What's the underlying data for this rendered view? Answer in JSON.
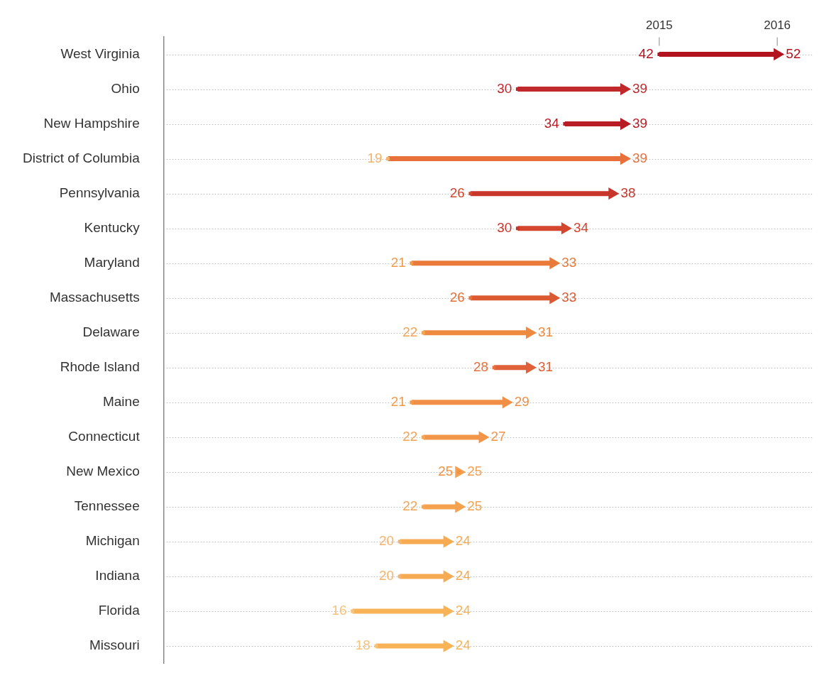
{
  "chart_data": {
    "type": "scatter",
    "orientation": "horizontal",
    "categories": [
      "West Virginia",
      "Ohio",
      "New Hampshire",
      "District of Columbia",
      "Pennsylvania",
      "Kentucky",
      "Maryland",
      "Massachusetts",
      "Delaware",
      "Rhode Island",
      "Maine",
      "Connecticut",
      "New Mexico",
      "Tennessee",
      "Michigan",
      "Indiana",
      "Florida",
      "Missouri"
    ],
    "series": [
      {
        "marker": "square",
        "values": [
          42,
          30,
          34,
          19,
          26,
          30,
          21,
          26,
          22,
          28,
          21,
          22,
          25,
          22,
          20,
          20,
          16,
          18
        ],
        "colors": [
          "#b3131f",
          "#c0282c",
          "#b81c24",
          "#f5b26b",
          "#d4462e",
          "#c8352b",
          "#f09a4a",
          "#e8703a",
          "#f2a556",
          "#e8703a",
          "#f09a4a",
          "#f2a556",
          "#f0923f",
          "#f2a556",
          "#f5b26b",
          "#f5b26b",
          "#f7c27a",
          "#f7c27a"
        ]
      },
      {
        "marker": "triangle",
        "values": [
          52,
          39,
          39,
          39,
          38,
          34,
          33,
          33,
          31,
          31,
          29,
          27,
          25,
          25,
          24,
          24,
          24,
          24
        ],
        "colors": [
          "#b3131f",
          "#c0282c",
          "#b81c24",
          "#e8703a",
          "#c8352b",
          "#d4462e",
          "#ea7a3a",
          "#dc5a32",
          "#ee8a40",
          "#e0603a",
          "#f08f45",
          "#f29548",
          "#f4a050",
          "#f5a24e",
          "#f6ab52",
          "#f6ab52",
          "#f7b356",
          "#f7b356"
        ]
      }
    ],
    "xlim": [
      0,
      55
    ],
    "tick_labels": "y",
    "grid": "y",
    "data_labels": true,
    "annotations": [
      {
        "text": "2015",
        "x": 42,
        "y": "West Virginia"
      },
      {
        "text": "2016",
        "x": 52,
        "y": "West Virginia"
      }
    ]
  }
}
